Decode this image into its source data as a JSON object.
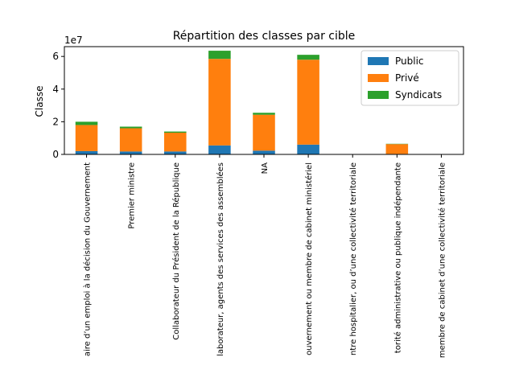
{
  "chart_data": {
    "type": "bar",
    "stacked": true,
    "title": "Répartition des classes par cible",
    "xlabel": "",
    "ylabel": "Classe",
    "y_offset_text": "1e7",
    "y_scale_factor": 10000000,
    "ylim": [
      0,
      66000000
    ],
    "yticks": [
      0,
      2,
      4,
      6
    ],
    "grid": false,
    "legend_position": "top-right",
    "categories": [
      "Titulaire d’un emploi à la décision du Gouvernement",
      "Premier ministre",
      "Collaborateur du Président de la République",
      "Collaborateur, agents des services des assemblées",
      "NA",
      "Gouvernement ou membre de cabinet ministériel",
      "Centre hospitalier, ou d’une collectivité territoriale",
      "Autorité administrative ou publique indépendante",
      "Membre de cabinet d’une collectivité territoriale"
    ],
    "category_labels_visible": [
      "aire d’un emploi à la décision du Gouvernement",
      "Premier ministre",
      "Collaborateur du Président de la République",
      "laborateur, agents des services des assemblées",
      "NA",
      "ouvernement ou membre de cabinet ministériel",
      "ntre hospitalier, ou d’une collectivité territoriale",
      "torité administrative ou publique indépendante",
      "membre de cabinet d’une collectivité territoriale"
    ],
    "series": [
      {
        "name": "Public",
        "color": "#1f77b4",
        "values": [
          2000000,
          1800000,
          1800000,
          5500000,
          2300000,
          6000000,
          0,
          300000,
          0
        ]
      },
      {
        "name": "Privé",
        "color": "#ff7f0e",
        "values": [
          16000000,
          14200000,
          11500000,
          53000000,
          22000000,
          52000000,
          0,
          6000000,
          0
        ]
      },
      {
        "name": "Syndicats",
        "color": "#2ca02c",
        "values": [
          2000000,
          1000000,
          700000,
          5000000,
          1200000,
          3000000,
          0,
          200000,
          0
        ]
      }
    ]
  }
}
